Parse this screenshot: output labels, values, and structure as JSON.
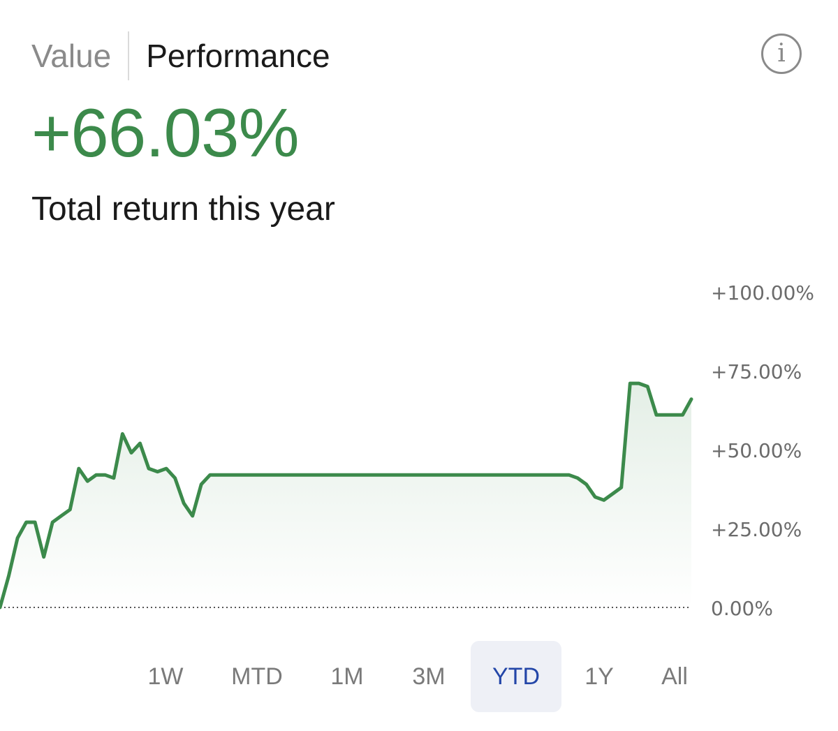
{
  "tabs": [
    {
      "label": "Value",
      "active": false
    },
    {
      "label": "Performance",
      "active": true
    }
  ],
  "info_icon": "info-icon",
  "info_glyph": "i",
  "summary": {
    "return_value": "+66.03%",
    "caption": "Total return this year",
    "accent_color": "#3c8a4b"
  },
  "ranges": [
    {
      "label": "1W",
      "active": false
    },
    {
      "label": "MTD",
      "active": false
    },
    {
      "label": "1M",
      "active": false
    },
    {
      "label": "3M",
      "active": false
    },
    {
      "label": "YTD",
      "active": true
    },
    {
      "label": "1Y",
      "active": false
    },
    {
      "label": "All",
      "active": false
    }
  ],
  "chart_data": {
    "type": "area",
    "x_axis": "time (YTD)",
    "y_unit": "percent",
    "ylim": [
      0,
      100
    ],
    "y_ticks": [
      {
        "value": 100,
        "label": "+100.00%"
      },
      {
        "value": 75,
        "label": "+75.00%"
      },
      {
        "value": 50,
        "label": "+50.00%"
      },
      {
        "value": 25,
        "label": "+25.00%"
      },
      {
        "value": 0,
        "label": "0.00%"
      }
    ],
    "baseline": 0,
    "line_color": "#3c8a4b",
    "grid": false,
    "values": [
      0,
      10,
      22,
      27,
      27,
      16,
      27,
      29,
      31,
      44,
      40,
      42,
      42,
      41,
      55,
      49,
      52,
      44,
      43,
      44,
      41,
      33,
      29,
      39,
      42,
      42,
      42,
      42,
      42,
      42,
      42,
      42,
      42,
      42,
      42,
      42,
      42,
      42,
      42,
      42,
      42,
      42,
      42,
      42,
      42,
      42,
      42,
      42,
      42,
      42,
      42,
      42,
      42,
      42,
      42,
      42,
      42,
      42,
      42,
      42,
      42,
      42,
      42,
      42,
      42,
      42,
      41,
      39,
      35,
      34,
      36,
      38,
      71,
      71,
      70,
      61,
      61,
      61,
      61,
      66
    ]
  }
}
